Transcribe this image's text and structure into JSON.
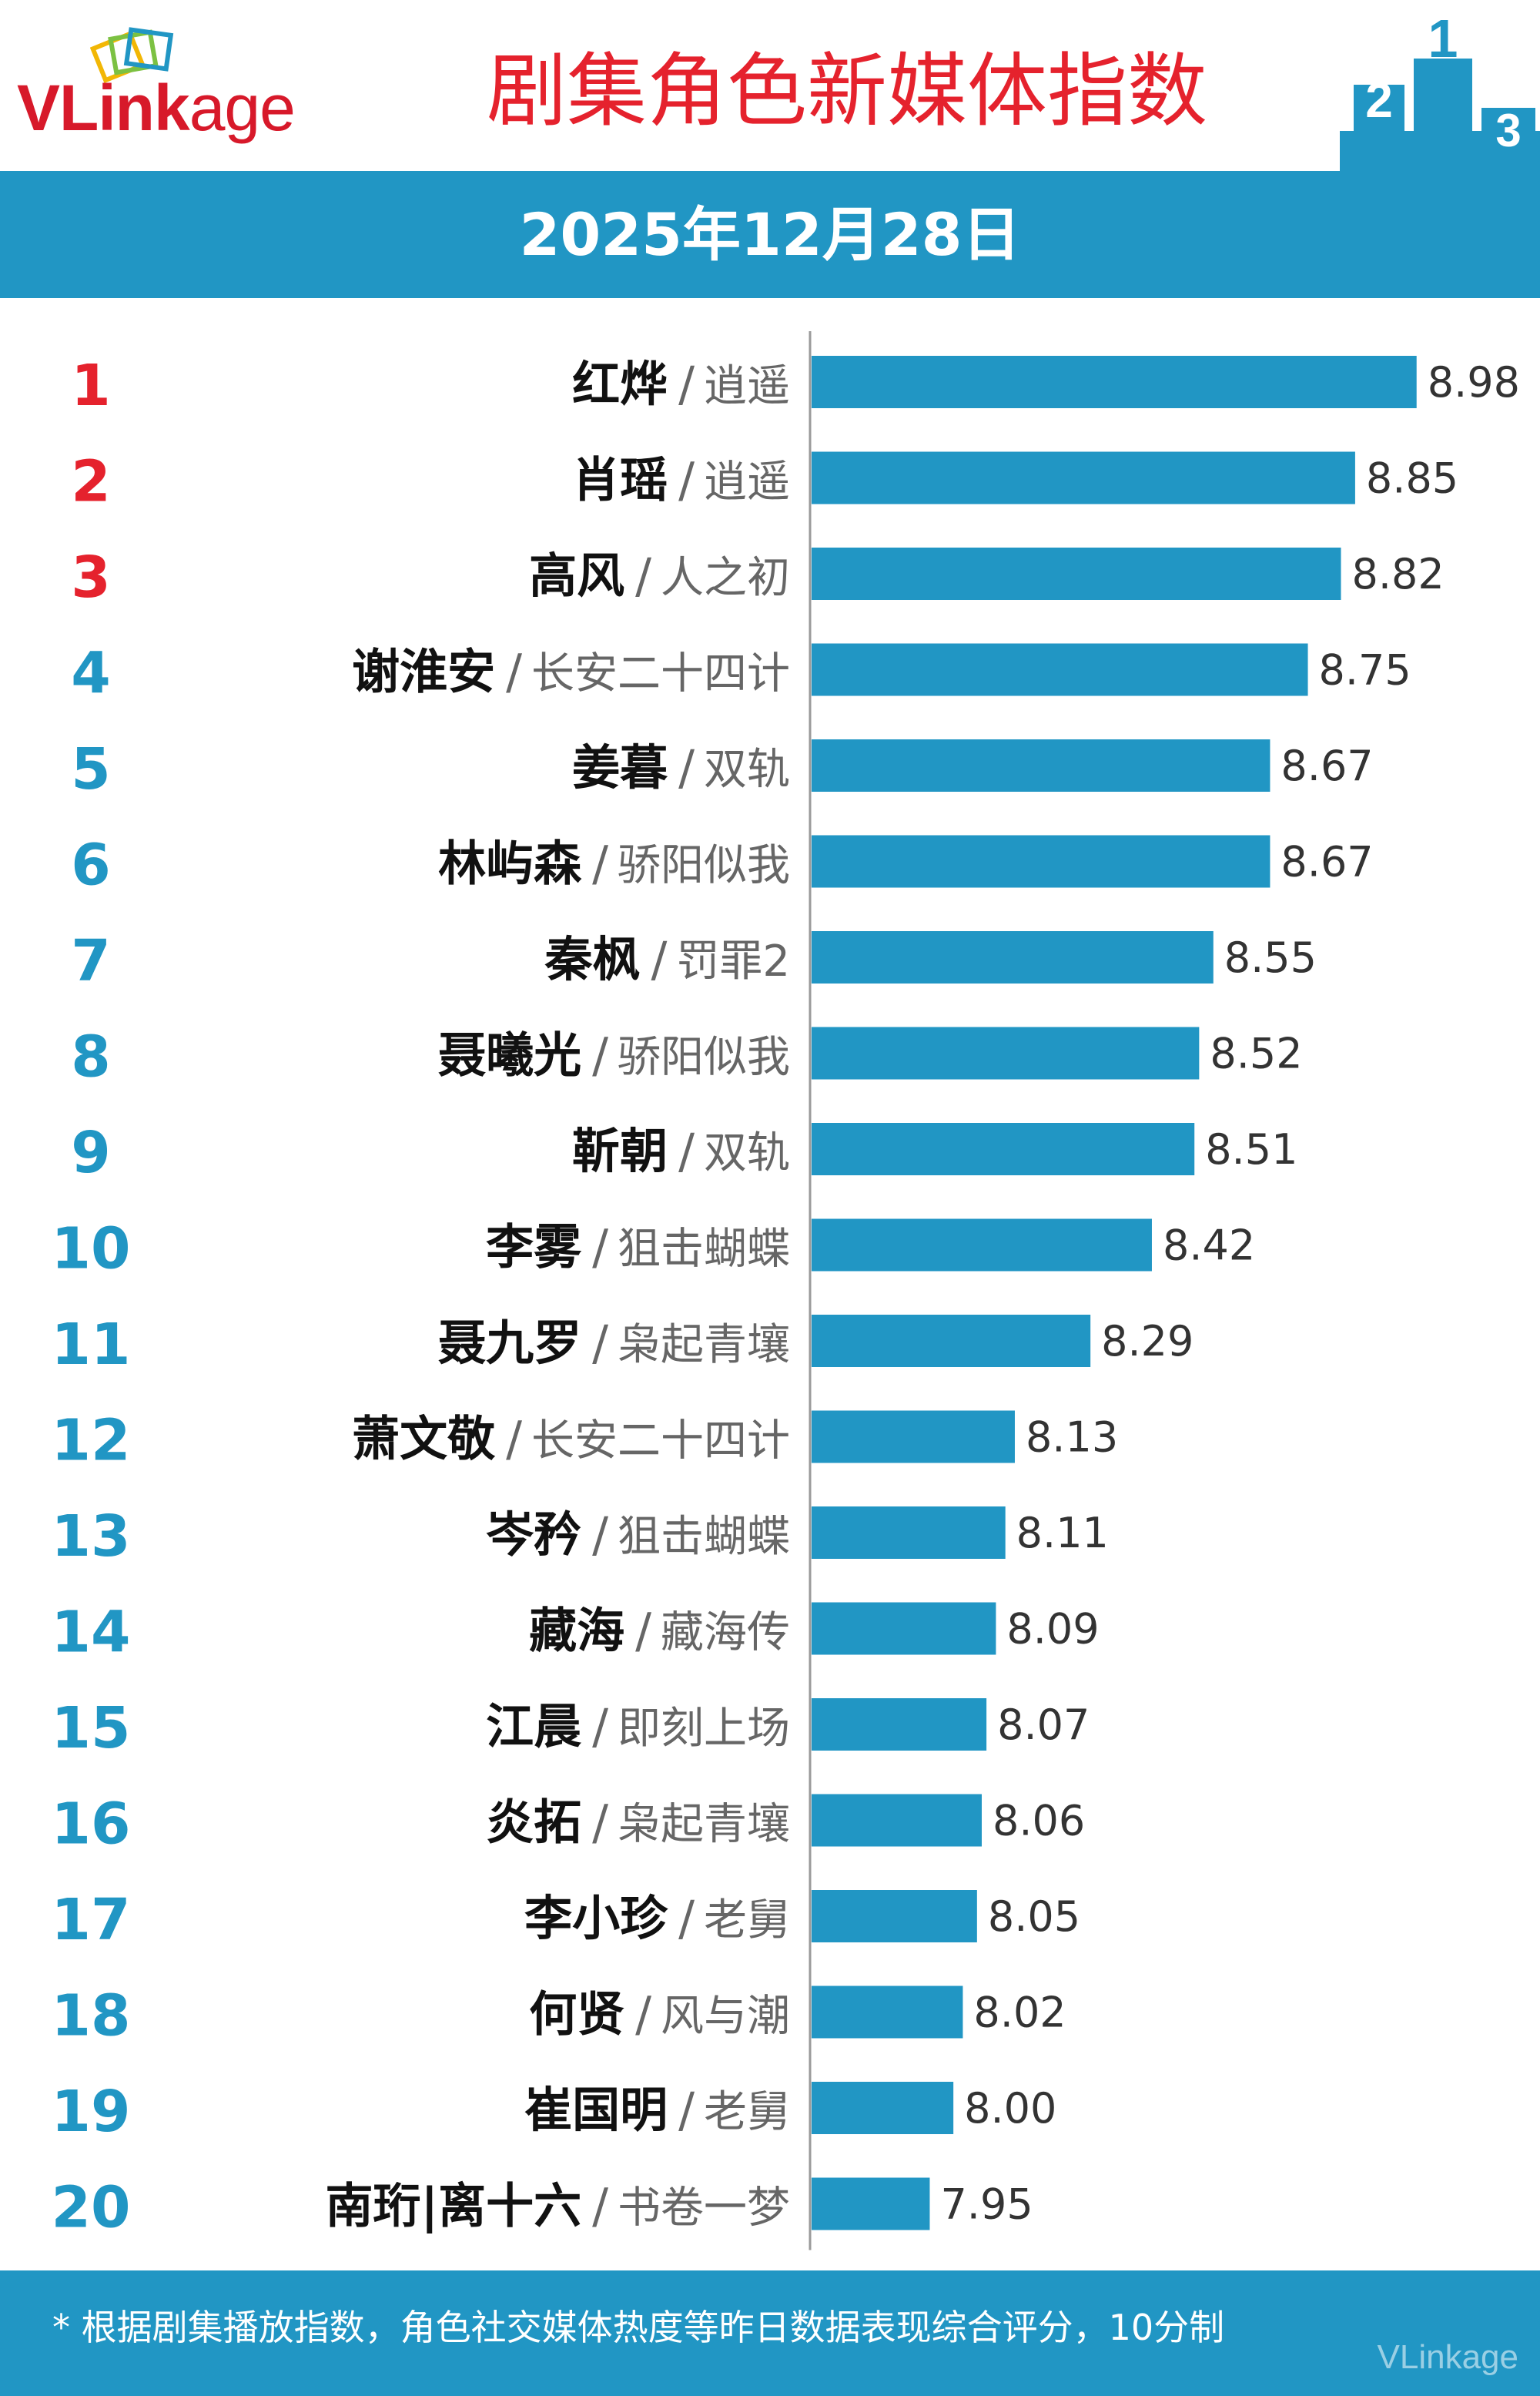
{
  "logo": {
    "text_v": "V",
    "text_link": "Link",
    "text_age": "age",
    "brand_color": "#d7192a"
  },
  "title": "剧集角色新媒体指数",
  "date": "2025年12月28日",
  "colors": {
    "accent": "#2196c4",
    "bar": "#2196c4",
    "top_rank": "#e5222d",
    "rank": "#2196c4",
    "title": "#e5222d"
  },
  "chart_data": {
    "type": "bar",
    "orientation": "horizontal",
    "title": "剧集角色新媒体指数",
    "categories": [
      {
        "rank": "1",
        "role": "红烨",
        "drama": "逍遥"
      },
      {
        "rank": "2",
        "role": "肖瑶",
        "drama": "逍遥"
      },
      {
        "rank": "3",
        "role": "高风",
        "drama": "人之初"
      },
      {
        "rank": "4",
        "role": "谢淮安",
        "drama": "长安二十四计"
      },
      {
        "rank": "5",
        "role": "姜暮",
        "drama": "双轨"
      },
      {
        "rank": "6",
        "role": "林屿森",
        "drama": "骄阳似我"
      },
      {
        "rank": "7",
        "role": "秦枫",
        "drama": "罚罪2"
      },
      {
        "rank": "8",
        "role": "聂曦光",
        "drama": "骄阳似我"
      },
      {
        "rank": "9",
        "role": "靳朝",
        "drama": "双轨"
      },
      {
        "rank": "10",
        "role": "李雾",
        "drama": "狙击蝴蝶"
      },
      {
        "rank": "11",
        "role": "聂九罗",
        "drama": "枭起青壤"
      },
      {
        "rank": "12",
        "role": "萧文敬",
        "drama": "长安二十四计"
      },
      {
        "rank": "13",
        "role": "岑矜",
        "drama": "狙击蝴蝶"
      },
      {
        "rank": "14",
        "role": "藏海",
        "drama": "藏海传"
      },
      {
        "rank": "15",
        "role": "江晨",
        "drama": "即刻上场"
      },
      {
        "rank": "16",
        "role": "炎拓",
        "drama": "枭起青壤"
      },
      {
        "rank": "17",
        "role": "李小珍",
        "drama": "老舅"
      },
      {
        "rank": "18",
        "role": "何贤",
        "drama": "风与潮"
      },
      {
        "rank": "19",
        "role": "崔国明",
        "drama": "老舅"
      },
      {
        "rank": "20",
        "role": "南珩|离十六",
        "drama": "书卷一梦"
      }
    ],
    "values": [
      8.98,
      8.85,
      8.82,
      8.75,
      8.67,
      8.67,
      8.55,
      8.52,
      8.51,
      8.42,
      8.29,
      8.13,
      8.11,
      8.09,
      8.07,
      8.06,
      8.05,
      8.02,
      8.0,
      7.95
    ],
    "value_labels": [
      "8.98",
      "8.85",
      "8.82",
      "8.75",
      "8.67",
      "8.67",
      "8.55",
      "8.52",
      "8.51",
      "8.42",
      "8.29",
      "8.13",
      "8.11",
      "8.09",
      "8.07",
      "8.06",
      "8.05",
      "8.02",
      "8.00",
      "7.95"
    ],
    "separator": "/",
    "xlim": [
      7.7,
      9.0
    ],
    "grid": false,
    "legend": "none"
  },
  "footer": {
    "note": "* 根据剧集播放指数，角色社交媒体热度等昨日数据表现综合评分，10分制",
    "watermark": "VLinkage"
  }
}
